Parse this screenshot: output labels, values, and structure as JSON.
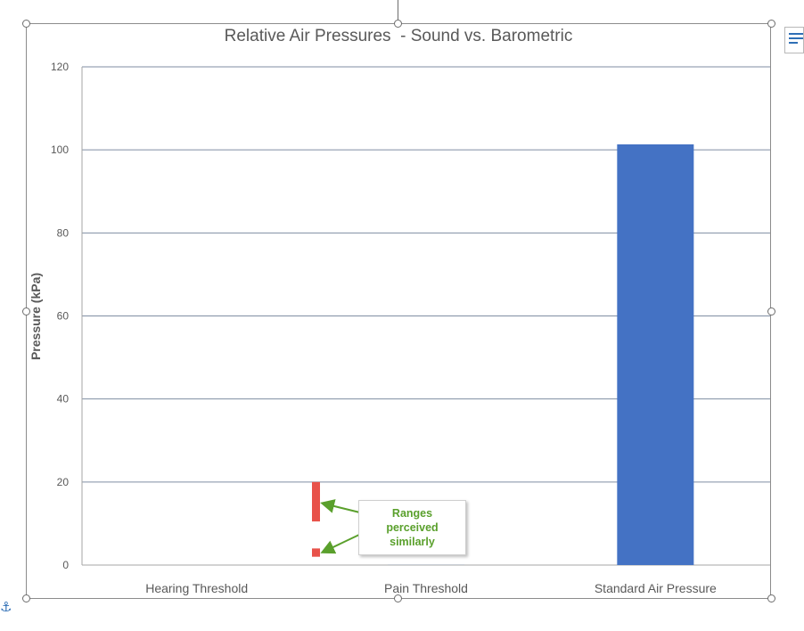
{
  "chart_data": {
    "type": "bar",
    "title": "Relative Air Pressures  - Sound vs. Barometric",
    "xlabel": "",
    "ylabel": "Pressure (kPa)",
    "ylim": [
      0,
      120
    ],
    "yticks": [
      0,
      20,
      40,
      60,
      80,
      100,
      120
    ],
    "grid": true,
    "categories": [
      "Hearing Threshold",
      "Pain Threshold",
      "Standard Air Pressure"
    ],
    "values": [
      2e-08,
      0.02,
      101.325
    ],
    "bar_color": "#4472c4",
    "highlight_ranges": [
      {
        "y_from": 10.5,
        "y_to": 20,
        "color": "#e8524a"
      },
      {
        "y_from": 2,
        "y_to": 4,
        "color": "#e8524a"
      }
    ],
    "annotation": {
      "text": "Ranges perceived similarly",
      "color": "#5aa02c"
    }
  },
  "ui": {
    "anchor_icon": "anchor-icon",
    "layout_options_icon": "layout-options-icon"
  }
}
